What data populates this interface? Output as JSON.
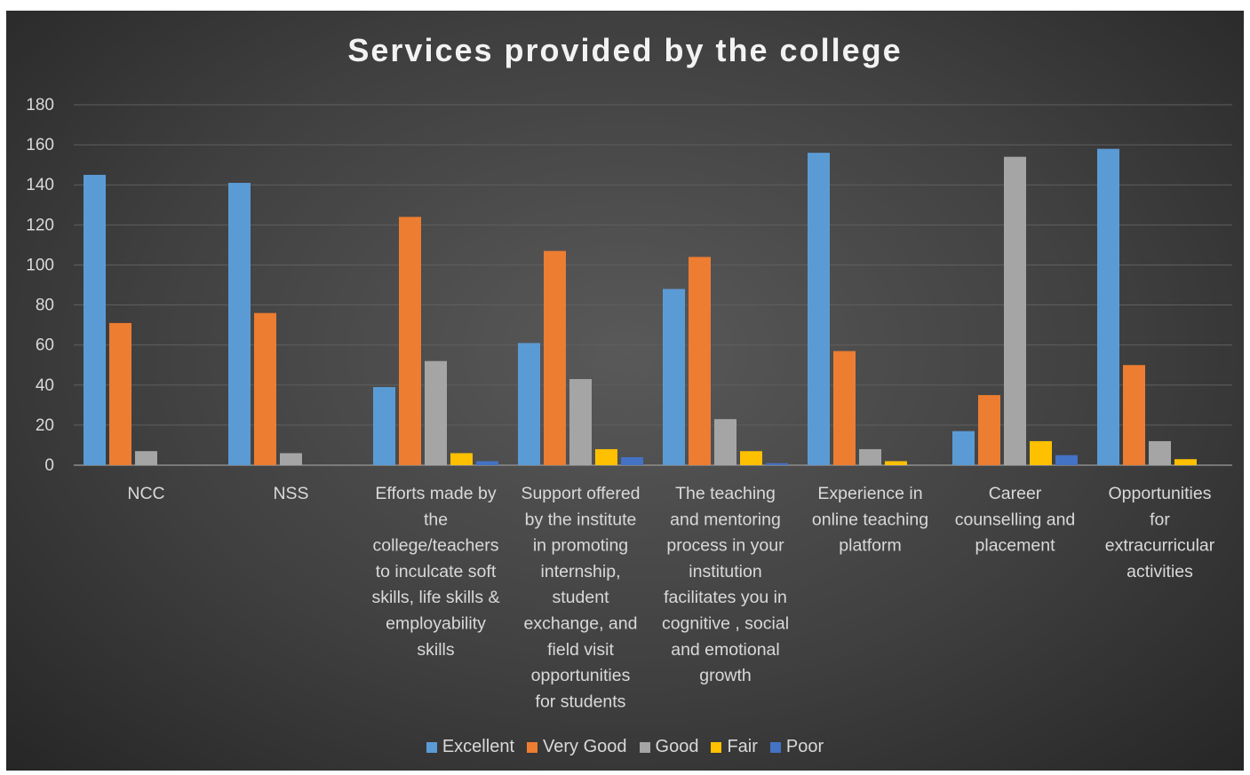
{
  "chart_data": {
    "type": "bar",
    "title": "Services provided by the college",
    "xlabel": "",
    "ylabel": "",
    "ylim": [
      0,
      180
    ],
    "yticks": [
      0,
      20,
      40,
      60,
      80,
      100,
      120,
      140,
      160,
      180
    ],
    "grid": true,
    "legend_position": "bottom",
    "categories": [
      "NCC",
      "NSS",
      "Efforts made by the college/teachers to inculcate soft skills, life skills & employability skills",
      "Support offered by the institute in promoting internship, student exchange, and field visit opportunities for students",
      "The teaching and mentoring process in your institution facilitates you in cognitive , social and emotional growth",
      "Experience in online teaching platform",
      "Career counselling and placement",
      "Opportunities for extracurricular activities"
    ],
    "category_label_lines": [
      [
        "NCC"
      ],
      [
        "NSS"
      ],
      [
        "Efforts made by",
        "the",
        "college/teachers",
        "to inculcate soft",
        "skills, life skills &",
        "employability",
        "skills"
      ],
      [
        "Support offered",
        "by the institute",
        "in promoting",
        "internship,",
        "student",
        "exchange, and",
        "field visit",
        "opportunities",
        "for students"
      ],
      [
        "The teaching",
        "and mentoring",
        "process in your",
        "institution",
        "facilitates you in",
        "cognitive , social",
        "and emotional",
        "growth"
      ],
      [
        "Experience in",
        "online teaching",
        "platform"
      ],
      [
        "Career",
        "counselling and",
        "placement"
      ],
      [
        "Opportunities",
        "for",
        "extracurricular",
        "activities"
      ]
    ],
    "series": [
      {
        "name": "Excellent",
        "color": "#5b9bd5",
        "values": [
          145,
          141,
          39,
          61,
          88,
          156,
          17,
          158
        ]
      },
      {
        "name": "Very Good",
        "color": "#ed7d31",
        "values": [
          71,
          76,
          124,
          107,
          104,
          57,
          35,
          50
        ]
      },
      {
        "name": "Good",
        "color": "#a5a5a5",
        "values": [
          7,
          6,
          52,
          43,
          23,
          8,
          154,
          12
        ]
      },
      {
        "name": "Fair",
        "color": "#ffc000",
        "values": [
          0,
          0,
          6,
          8,
          7,
          2,
          12,
          3
        ]
      },
      {
        "name": "Poor",
        "color": "#4472c4",
        "values": [
          0,
          0,
          2,
          4,
          1,
          0,
          5,
          0
        ]
      }
    ]
  }
}
